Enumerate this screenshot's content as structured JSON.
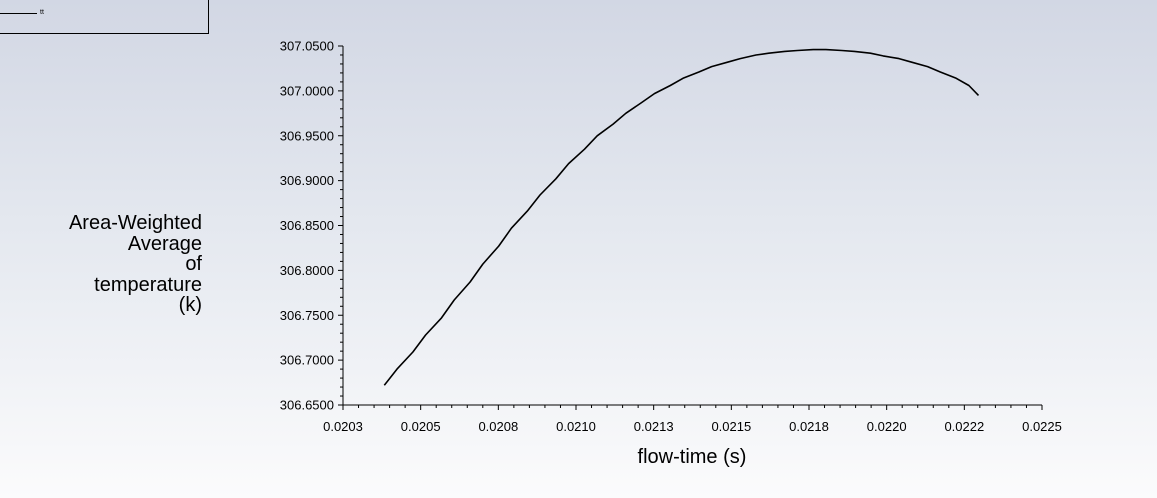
{
  "legend": {
    "label": "tt"
  },
  "chart_data": {
    "type": "line",
    "title": "",
    "xlabel": "flow-time (s)",
    "ylabel_lines": [
      "Area-Weighted",
      "Average",
      "of",
      "temperature",
      "(k)"
    ],
    "xlim": [
      0.0203,
      0.0225
    ],
    "ylim": [
      306.65,
      307.05
    ],
    "x_ticks": [
      "0.0203",
      "0.0205",
      "0.0208",
      "0.0210",
      "0.0213",
      "0.0215",
      "0.0218",
      "0.0220",
      "0.0222",
      "0.0225"
    ],
    "y_ticks": [
      "306.6500",
      "306.7000",
      "306.7500",
      "306.8000",
      "306.8500",
      "306.9000",
      "306.9500",
      "307.0000",
      "307.0500"
    ],
    "grid": false,
    "series": [
      {
        "name": "tt",
        "x": [
          0.02043,
          0.02047,
          0.02052,
          0.02056,
          0.02061,
          0.02065,
          0.0207,
          0.02074,
          0.02079,
          0.02083,
          0.02088,
          0.02092,
          0.02097,
          0.02101,
          0.02106,
          0.0211,
          0.02115,
          0.02119,
          0.02124,
          0.02128,
          0.02133,
          0.02137,
          0.02142,
          0.02146,
          0.02151,
          0.02155,
          0.0216,
          0.02164,
          0.02169,
          0.02173,
          0.02178,
          0.02182,
          0.02187,
          0.02191,
          0.02196,
          0.022,
          0.02205,
          0.02209,
          0.02214,
          0.02218,
          0.02223,
          0.02227,
          0.0223
        ],
        "values": [
          306.672,
          306.69,
          306.709,
          306.728,
          306.747,
          306.767,
          306.787,
          306.807,
          306.827,
          306.847,
          306.866,
          306.884,
          306.902,
          306.919,
          306.935,
          306.95,
          306.963,
          306.975,
          306.987,
          306.997,
          307.006,
          307.014,
          307.021,
          307.027,
          307.032,
          307.036,
          307.04,
          307.042,
          307.044,
          307.045,
          307.046,
          307.046,
          307.045,
          307.044,
          307.042,
          307.039,
          307.036,
          307.032,
          307.027,
          307.021,
          307.014,
          307.006,
          306.995
        ]
      }
    ]
  }
}
